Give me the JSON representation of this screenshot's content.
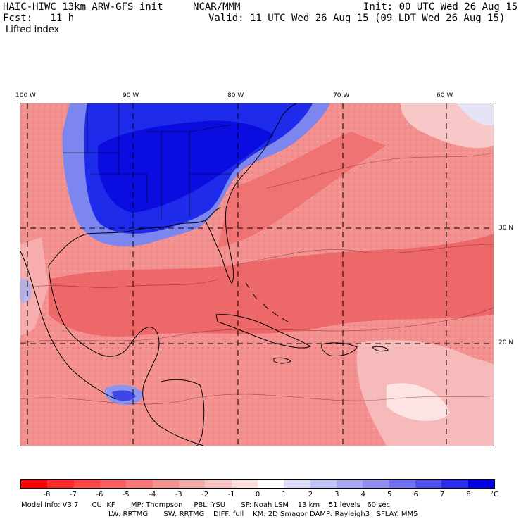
{
  "header": {
    "title_left": "HAIC-HIWC 13km ARW-GFS init",
    "title_center": "NCAR/MMM",
    "init": "Init: 00 UTC Wed 26 Aug 15",
    "fcst": "Fcst:   11 h",
    "valid": "Valid: 11 UTC Wed 26 Aug 15 (09 LDT Wed 26 Aug 15)",
    "field": "Lifted index"
  },
  "map": {
    "lon_labels": [
      "100 W",
      "90 W",
      "80 W",
      "70 W",
      "60 W"
    ],
    "lat_labels": [
      "30 N",
      "20 N"
    ],
    "colors": {
      "deep_blue": "#0a14e6",
      "mid_blue": "#6070ee",
      "light_red": "#f7b0b0",
      "mid_red": "#f07a7a",
      "strong_red": "#e84848",
      "pale": "#fde3e3"
    }
  },
  "colorbar": {
    "labels": [
      "-8",
      "-7",
      "-6",
      "-5",
      "-4",
      "-3",
      "-2",
      "-1",
      "0",
      "1",
      "2",
      "3",
      "4",
      "5",
      "6",
      "7",
      "8"
    ],
    "unit": "°C",
    "colors": [
      "#ff0000",
      "#ff2a2a",
      "#ff4646",
      "#fb5e5e",
      "#f77878",
      "#f59191",
      "#f5aaaa",
      "#f8c3c3",
      "#fbdcdc",
      "#ffffff",
      "#dcdcfb",
      "#c3c3f8",
      "#a8a8f5",
      "#8e8ef3",
      "#7070f0",
      "#5050ee",
      "#2c2ceb",
      "#0000e6"
    ]
  },
  "model_info": {
    "line1": "Model Info: V3.7      CU: KF       MP: Thompson     PBL: YSU       SF: Noah LSM    13 km    51 levels   60 sec",
    "line2": "LW: RRTMG       SW: RRTMG    DIFF: full    KM: 2D Smagor DAMP: Rayleigh3   SFLAY: MM5"
  }
}
